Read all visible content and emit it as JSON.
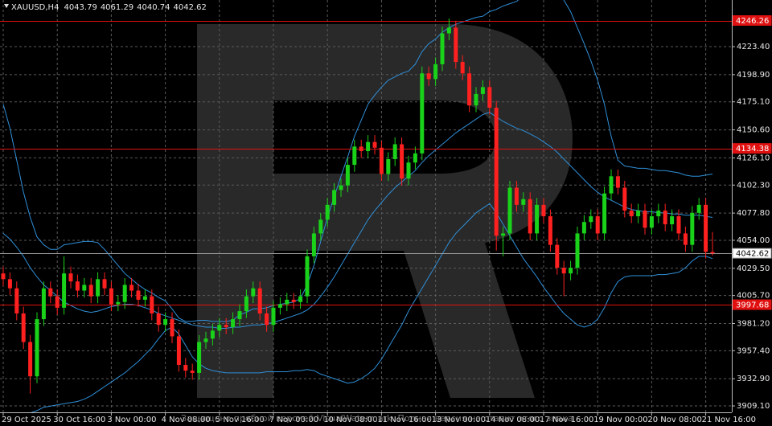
{
  "chart_data": {
    "type": "candlestick",
    "title": "XAUUSD,H4",
    "watermark_text": "Защищено пробной версией VisualWatermark. Полная версия не ставит этого знака",
    "up_color": "#19d219",
    "down_color": "#ff2020",
    "band_color": "#2f8fd8",
    "grid": true,
    "categories": [
      "29 Oct 2025",
      null,
      null,
      null,
      null,
      null,
      null,
      null,
      "30 Oct 16:00",
      null,
      null,
      null,
      null,
      null,
      null,
      null,
      "3 Nov 00:00",
      null,
      null,
      null,
      null,
      null,
      null,
      null,
      "4 Nov 08:00",
      null,
      null,
      null,
      null,
      null,
      null,
      null,
      "5 Nov 16:00",
      null,
      null,
      null,
      null,
      null,
      null,
      null,
      "7 Nov 00:00",
      null,
      null,
      null,
      null,
      null,
      null,
      null,
      "10 Nov 08:00",
      null,
      null,
      null,
      null,
      null,
      null,
      null,
      "11 Nov 16:00",
      null,
      null,
      null,
      null,
      null,
      null,
      null,
      "13 Nov 00:00",
      null,
      null,
      null,
      null,
      null,
      null,
      null,
      "14 Nov 08:00",
      null,
      null,
      null,
      null,
      null,
      null,
      null,
      "17 Nov 16:00",
      null,
      null,
      null,
      null,
      null,
      null,
      null,
      "19 Nov 00:00",
      null,
      null,
      null,
      null,
      null,
      null,
      null,
      "20 Nov 08:00",
      null,
      null,
      null,
      null,
      null,
      null,
      null,
      "21 Nov 16:00",
      null
    ],
    "open": [
      4025,
      4020,
      4012,
      3990,
      3965,
      3935,
      3985,
      4012,
      4005,
      3995,
      4025,
      4018,
      4010,
      4015,
      4005,
      4020,
      4012,
      3998,
      4000,
      4015,
      4010,
      4002,
      4005,
      3990,
      3980,
      3985,
      3970,
      3945,
      3940,
      3938,
      3965,
      3968,
      3975,
      3980,
      3978,
      3985,
      3992,
      4005,
      4012,
      3990,
      3980,
      3995,
      3998,
      4002,
      4000,
      4005,
      4040,
      4060,
      4072,
      4085,
      4098,
      4102,
      4120,
      4136,
      4132,
      4140,
      4135,
      4112,
      4125,
      4138,
      4108,
      4122,
      4130,
      4200,
      4195,
      4208,
      4235,
      4240,
      4210,
      4200,
      4172,
      4182,
      4188,
      4170,
      4058,
      4060,
      4100,
      4085,
      4090,
      4060,
      4085,
      4075,
      4050,
      4030,
      4025,
      4030,
      4060,
      4070,
      4075,
      4060,
      4095,
      4110,
      4100,
      4080,
      4075,
      4080,
      4065,
      4075,
      4080,
      4068,
      4075,
      4060,
      4050,
      4078,
      4085,
      4043.79
    ],
    "high": [
      4031,
      4026,
      4018,
      3996,
      3971,
      3991,
      4018,
      4018,
      4011,
      4040,
      4031,
      4024,
      4021,
      4021,
      4026,
      4026,
      4018,
      4006,
      4021,
      4021,
      4016,
      4011,
      4011,
      3996,
      3991,
      3991,
      3976,
      3951,
      3946,
      3971,
      3974,
      3981,
      3986,
      3986,
      3991,
      3998,
      4011,
      4018,
      4018,
      3996,
      4001,
      4004,
      4008,
      4008,
      4011,
      4046,
      4066,
      4078,
      4091,
      4104,
      4108,
      4126,
      4142,
      4142,
      4146,
      4146,
      4141,
      4131,
      4144,
      4144,
      4128,
      4136,
      4206,
      4206,
      4214,
      4241,
      4248,
      4246,
      4216,
      4206,
      4188,
      4194,
      4194,
      4176,
      4066,
      4106,
      4106,
      4096,
      4096,
      4091,
      4091,
      4081,
      4056,
      4036,
      4036,
      4066,
      4076,
      4081,
      4081,
      4101,
      4116,
      4116,
      4106,
      4086,
      4086,
      4086,
      4081,
      4086,
      4086,
      4081,
      4081,
      4066,
      4084,
      4091,
      4091,
      4061.29
    ],
    "low": [
      4014,
      4006,
      3984,
      3959,
      3920,
      3929,
      3979,
      3999,
      3989,
      3989,
      4012,
      4004,
      4004,
      3999,
      3999,
      4006,
      3992,
      3992,
      3994,
      4004,
      3996,
      3996,
      3984,
      3974,
      3974,
      3964,
      3939,
      3934,
      3932,
      3932,
      3959,
      3962,
      3969,
      3972,
      3972,
      3979,
      3986,
      3999,
      3984,
      3974,
      3974,
      3989,
      3992,
      3994,
      3994,
      3999,
      4034,
      4054,
      4066,
      4079,
      4092,
      4096,
      4114,
      4126,
      4126,
      4129,
      4106,
      4106,
      4119,
      4102,
      4102,
      4116,
      4124,
      4189,
      4189,
      4202,
      4229,
      4204,
      4194,
      4166,
      4166,
      4176,
      4164,
      4045,
      4040,
      4054,
      4079,
      4079,
      4054,
      4054,
      4069,
      4044,
      4024,
      4005,
      4019,
      4024,
      4054,
      4064,
      4054,
      4054,
      4089,
      4094,
      4074,
      4069,
      4069,
      4059,
      4059,
      4069,
      4062,
      4062,
      4054,
      4044,
      4044,
      4072,
      4038,
      4040.74
    ],
    "close": [
      4020,
      4012,
      3990,
      3965,
      3935,
      3985,
      4012,
      4005,
      3995,
      4025,
      4018,
      4010,
      4015,
      4005,
      4020,
      4012,
      3998,
      4000,
      4015,
      4010,
      4002,
      4005,
      3990,
      3980,
      3985,
      3970,
      3945,
      3940,
      3938,
      3965,
      3968,
      3975,
      3980,
      3978,
      3985,
      3992,
      4005,
      4012,
      3990,
      3980,
      3995,
      3998,
      4002,
      4000,
      4005,
      4040,
      4060,
      4072,
      4085,
      4098,
      4102,
      4120,
      4136,
      4132,
      4140,
      4135,
      4112,
      4125,
      4138,
      4108,
      4122,
      4130,
      4200,
      4195,
      4208,
      4235,
      4240,
      4210,
      4200,
      4172,
      4182,
      4188,
      4170,
      4058,
      4060,
      4100,
      4085,
      4090,
      4060,
      4085,
      4075,
      4050,
      4030,
      4025,
      4030,
      4060,
      4070,
      4075,
      4060,
      4095,
      4110,
      4100,
      4080,
      4075,
      4080,
      4065,
      4075,
      4080,
      4068,
      4075,
      4060,
      4050,
      4078,
      4085,
      4044,
      4042.62
    ],
    "bands": [
      {
        "values": [
          4173,
          4152,
          4124,
          4096,
          4074,
          4057,
          4050,
          4046,
          4046,
          4050,
          4051,
          4052,
          4053,
          4053,
          4052,
          4046,
          4039,
          4032,
          4025,
          4020,
          4015,
          4011,
          4008,
          4004,
          4001,
          3994,
          3986,
          3983,
          3983,
          3984,
          3984,
          3983,
          3983,
          3983,
          3984,
          3989,
          3991,
          3994,
          3994,
          3995,
          3997,
          3998,
          3999,
          4000,
          4003,
          4015,
          4032,
          4053,
          4074,
          4092,
          4110,
          4127,
          4145,
          4159,
          4173,
          4181,
          4188,
          4194,
          4197,
          4200,
          4202,
          4208,
          4219,
          4226,
          4230,
          4236,
          4240,
          4243,
          4245,
          4247,
          4249,
          4250,
          4254,
          4256,
          4259,
          4261,
          4263,
          4268,
          4275,
          4282,
          4285,
          4282,
          4275,
          4264,
          4254,
          4240,
          4226,
          4211,
          4194,
          4173,
          4145,
          4124,
          4119,
          4118,
          4117,
          4117,
          4116,
          4115,
          4115,
          4114,
          4113,
          4111,
          4110,
          4110,
          4111,
          4112
        ]
      },
      {
        "values": [
          4060,
          4055,
          4048,
          4040,
          4030,
          4022,
          4015,
          4010,
          4005,
          4000,
          3997,
          3994,
          3992,
          3991,
          3992,
          3994,
          3996,
          3997,
          3998,
          3998,
          3997,
          3995,
          3993,
          3990,
          3988,
          3986,
          3984,
          3982,
          3980,
          3979,
          3978,
          3978,
          3977,
          3977,
          3978,
          3978,
          3979,
          3980,
          3980,
          3981,
          3982,
          3984,
          3986,
          3988,
          3990,
          3993,
          3998,
          4005,
          4013,
          4022,
          4032,
          4042,
          4052,
          4062,
          4072,
          4080,
          4087,
          4094,
          4100,
          4105,
          4110,
          4115,
          4122,
          4128,
          4133,
          4138,
          4143,
          4148,
          4152,
          4156,
          4160,
          4164,
          4166,
          4162,
          4158,
          4155,
          4152,
          4150,
          4147,
          4144,
          4140,
          4136,
          4131,
          4125,
          4119,
          4113,
          4107,
          4101,
          4096,
          4092,
          4089,
          4086,
          4083,
          4081,
          4080,
          4079,
          4079,
          4078,
          4078,
          4077,
          4077,
          4076,
          4076,
          4076,
          4075,
          4074
        ]
      },
      {
        "values": [
          3895,
          3897,
          3899,
          3901,
          3903,
          3905,
          3908,
          3909,
          3910,
          3911,
          3912,
          3913,
          3915,
          3918,
          3922,
          3926,
          3930,
          3934,
          3938,
          3943,
          3948,
          3954,
          3960,
          3968,
          3975,
          3978,
          3972,
          3962,
          3952,
          3946,
          3942,
          3940,
          3939,
          3938,
          3938,
          3938,
          3938,
          3938,
          3938,
          3939,
          3939,
          3939,
          3939,
          3940,
          3940,
          3941,
          3940,
          3937,
          3935,
          3933,
          3931,
          3929,
          3930,
          3933,
          3937,
          3942,
          3950,
          3960,
          3970,
          3980,
          3992,
          4002,
          4012,
          4022,
          4032,
          4042,
          4052,
          4060,
          4066,
          4072,
          4078,
          4082,
          4086,
          4078,
          4068,
          4058,
          4048,
          4038,
          4030,
          4022,
          4013,
          4005,
          3997,
          3990,
          3985,
          3980,
          3978,
          3980,
          3985,
          3995,
          4008,
          4018,
          4022,
          4023,
          4023,
          4023,
          4023,
          4024,
          4024,
          4025,
          4026,
          4030,
          4036,
          4040,
          4040,
          4038
        ]
      }
    ],
    "levels": [
      {
        "value": 4246.26,
        "color": "#e01010"
      },
      {
        "value": 4134.38,
        "color": "#e01010"
      },
      {
        "value": 3997.68,
        "color": "#e01010"
      },
      {
        "value": 4042.62,
        "color": "#9a9a9a"
      }
    ],
    "ylim": [
      3903.5,
      4264.2
    ],
    "yticks": [
      {
        "value": 4223.4,
        "label": "4223.40"
      },
      {
        "value": 4198.9,
        "label": "4198.90"
      },
      {
        "value": 4175.1,
        "label": "4175.10"
      },
      {
        "value": 4150.6,
        "label": "4150.60"
      },
      {
        "value": 4126.1,
        "label": "4126.10"
      },
      {
        "value": 4102.3,
        "label": "4102.30"
      },
      {
        "value": 4077.8,
        "label": "4077.80"
      },
      {
        "value": 4054,
        "label": "4054.00"
      },
      {
        "value": 4029.5,
        "label": "4029.50"
      },
      {
        "value": 4005.7,
        "label": "4005.70"
      },
      {
        "value": 3981.2,
        "label": "3981.20"
      },
      {
        "value": 3957.4,
        "label": "3957.40"
      },
      {
        "value": 3932.9,
        "label": "3932.90"
      },
      {
        "value": 3909.1,
        "label": "3909.10"
      }
    ]
  }
}
